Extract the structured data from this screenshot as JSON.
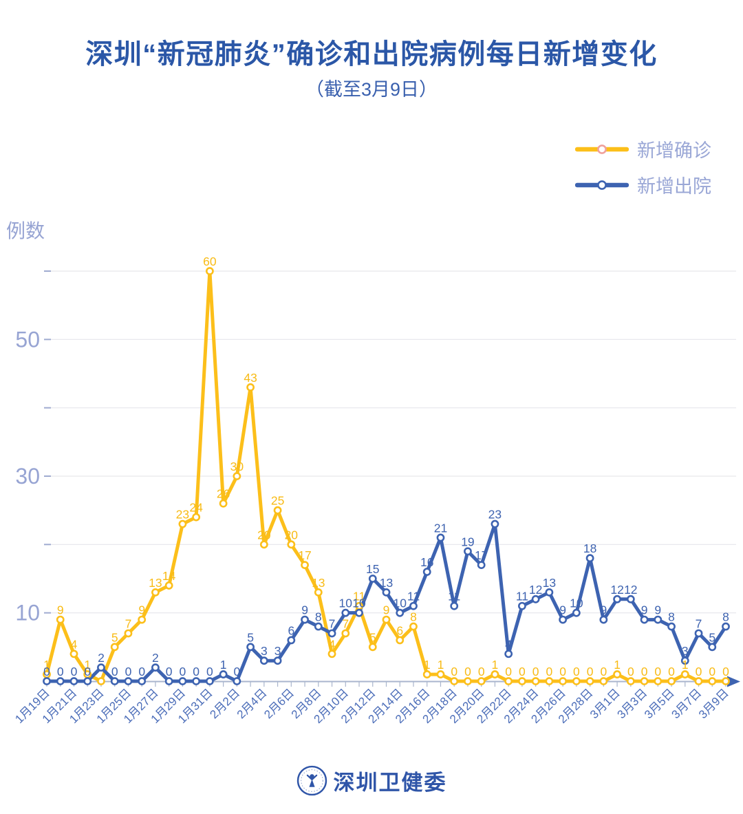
{
  "header": {
    "title": "深圳“新冠肺炎”确诊和出院病例每日新增变化",
    "subtitle": "（截至3月9日）"
  },
  "legend": [
    {
      "key": "new-confirmed",
      "label": "新增确诊",
      "line_color": "#FCBF1A",
      "marker_stroke": "#F0A19C"
    },
    {
      "key": "new-discharged",
      "label": "新增出院",
      "line_color": "#3D63B1",
      "marker_stroke": "#3D63B1"
    }
  ],
  "footer": {
    "org": "深圳卫健委"
  },
  "chart_data": {
    "type": "line",
    "y_axis_title": "例数",
    "x": [
      "1月19日",
      "1月20日",
      "1月21日",
      "1月22日",
      "1月23日",
      "1月24日",
      "1月25日",
      "1月26日",
      "1月27日",
      "1月28日",
      "1月29日",
      "1月30日",
      "1月31日",
      "2月1日",
      "2月2日",
      "2月3日",
      "2月4日",
      "2月5日",
      "2月6日",
      "2月7日",
      "2月8日",
      "2月9日",
      "2月10日",
      "2月11日",
      "2月12日",
      "2月13日",
      "2月14日",
      "2月15日",
      "2月16日",
      "2月17日",
      "2月18日",
      "2月19日",
      "2月20日",
      "2月21日",
      "2月22日",
      "2月23日",
      "2月24日",
      "2月25日",
      "2月26日",
      "2月27日",
      "2月28日",
      "2月29日",
      "3月1日",
      "3月2日",
      "3月3日",
      "3月4日",
      "3月5日",
      "3月6日",
      "3月7日",
      "3月8日",
      "3月9日"
    ],
    "x_label_every": 2,
    "y_gridlines": [
      10,
      20,
      30,
      40,
      50,
      60
    ],
    "y_ticks_labeled": [
      "10",
      "30",
      "50"
    ],
    "ylim": [
      0,
      62
    ],
    "grid": true,
    "legend_position": "top-right",
    "point_labels": true,
    "series": [
      {
        "name": "新增确诊",
        "color": "#FCBF1A",
        "label_color": "#F8BB16",
        "values": [
          1,
          9,
          4,
          1,
          0,
          5,
          7,
          9,
          13,
          14,
          23,
          24,
          60,
          26,
          30,
          43,
          20,
          25,
          20,
          17,
          13,
          4,
          7,
          11,
          5,
          9,
          6,
          8,
          1,
          1,
          0,
          0,
          0,
          1,
          0,
          0,
          0,
          0,
          0,
          0,
          0,
          0,
          1,
          0,
          0,
          0,
          0,
          1,
          0,
          0,
          0
        ]
      },
      {
        "name": "新增出院",
        "color": "#3D63B1",
        "label_color": "#3E63B0",
        "values": [
          0,
          0,
          0,
          0,
          2,
          0,
          0,
          0,
          2,
          0,
          0,
          0,
          0,
          1,
          0,
          5,
          3,
          3,
          6,
          9,
          8,
          7,
          10,
          10,
          15,
          13,
          10,
          11,
          16,
          21,
          11,
          19,
          17,
          23,
          4,
          11,
          12,
          13,
          9,
          10,
          18,
          9,
          12,
          12,
          9,
          9,
          8,
          3,
          7,
          5,
          8
        ]
      }
    ],
    "hidden_point_labels": [
      {
        "series": 0,
        "index": 4
      }
    ]
  }
}
